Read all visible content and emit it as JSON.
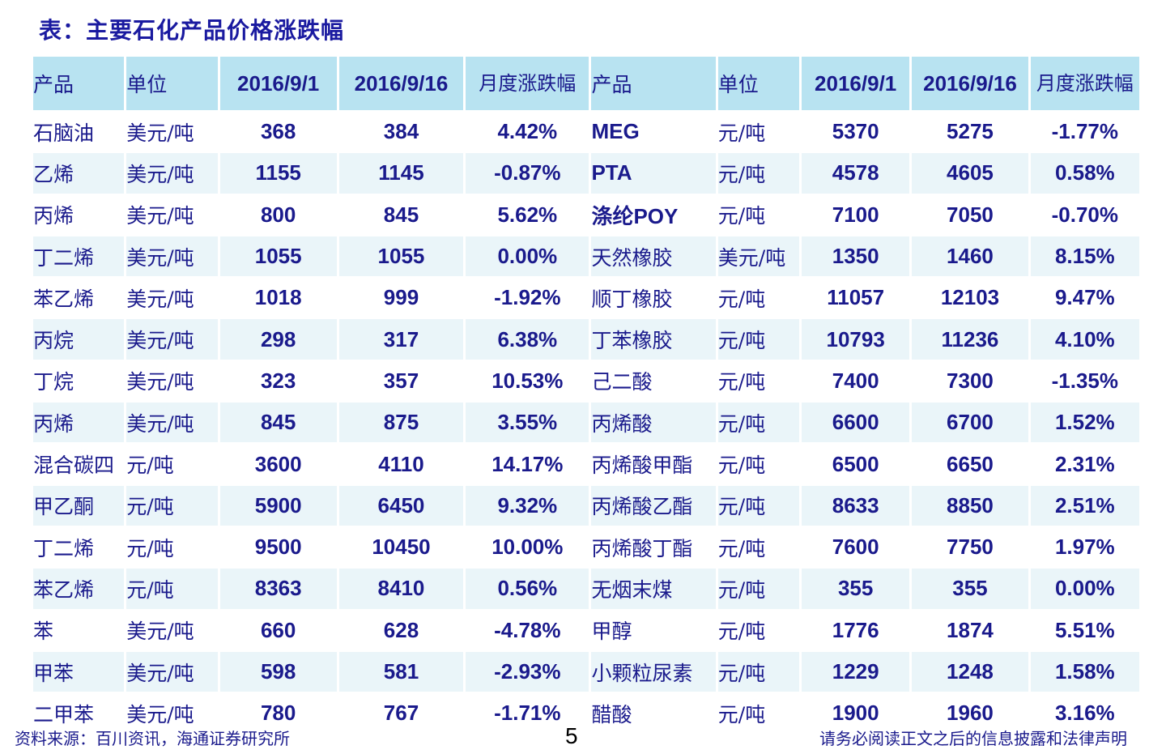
{
  "title": "表：主要石化产品价格涨跌幅",
  "table": {
    "headers": {
      "left": {
        "product": "产品",
        "unit": "单位",
        "date1": "2016/9/1",
        "date2": "2016/9/16",
        "change": "月度涨跌幅"
      },
      "right": {
        "product": "产品",
        "unit": "单位",
        "date1": "2016/9/1",
        "date2": "2016/9/16",
        "change": "月度涨跌幅"
      }
    },
    "rows": [
      {
        "left": {
          "product": "石脑油",
          "unit": "美元/吨",
          "v1": "368",
          "v2": "384",
          "change": "4.42%"
        },
        "right": {
          "product": "MEG",
          "unit": "元/吨",
          "v1": "5370",
          "v2": "5275",
          "change": "-1.77%"
        }
      },
      {
        "left": {
          "product": "乙烯",
          "unit": "美元/吨",
          "v1": "1155",
          "v2": "1145",
          "change": "-0.87%"
        },
        "right": {
          "product": "PTA",
          "unit": "元/吨",
          "v1": "4578",
          "v2": "4605",
          "change": "0.58%"
        }
      },
      {
        "left": {
          "product": "丙烯",
          "unit": "美元/吨",
          "v1": "800",
          "v2": "845",
          "change": "5.62%"
        },
        "right": {
          "product": "涤纶POY",
          "unit": "元/吨",
          "v1": "7100",
          "v2": "7050",
          "change": "-0.70%"
        }
      },
      {
        "left": {
          "product": "丁二烯",
          "unit": "美元/吨",
          "v1": "1055",
          "v2": "1055",
          "change": "0.00%"
        },
        "right": {
          "product": "天然橡胶",
          "unit": "美元/吨",
          "v1": "1350",
          "v2": "1460",
          "change": "8.15%"
        }
      },
      {
        "left": {
          "product": "苯乙烯",
          "unit": "美元/吨",
          "v1": "1018",
          "v2": "999",
          "change": "-1.92%"
        },
        "right": {
          "product": "顺丁橡胶",
          "unit": "元/吨",
          "v1": "11057",
          "v2": "12103",
          "change": "9.47%"
        }
      },
      {
        "left": {
          "product": "丙烷",
          "unit": "美元/吨",
          "v1": "298",
          "v2": "317",
          "change": "6.38%"
        },
        "right": {
          "product": "丁苯橡胶",
          "unit": "元/吨",
          "v1": "10793",
          "v2": "11236",
          "change": "4.10%"
        }
      },
      {
        "left": {
          "product": "丁烷",
          "unit": "美元/吨",
          "v1": "323",
          "v2": "357",
          "change": "10.53%"
        },
        "right": {
          "product": "己二酸",
          "unit": "元/吨",
          "v1": "7400",
          "v2": "7300",
          "change": "-1.35%"
        }
      },
      {
        "left": {
          "product": "丙烯",
          "unit": "美元/吨",
          "v1": "845",
          "v2": "875",
          "change": "3.55%"
        },
        "right": {
          "product": "丙烯酸",
          "unit": "元/吨",
          "v1": "6600",
          "v2": "6700",
          "change": "1.52%"
        }
      },
      {
        "left": {
          "product": "混合碳四",
          "unit": "元/吨",
          "v1": "3600",
          "v2": "4110",
          "change": "14.17%"
        },
        "right": {
          "product": "丙烯酸甲酯",
          "unit": "元/吨",
          "v1": "6500",
          "v2": "6650",
          "change": "2.31%"
        }
      },
      {
        "left": {
          "product": "甲乙酮",
          "unit": "元/吨",
          "v1": "5900",
          "v2": "6450",
          "change": "9.32%"
        },
        "right": {
          "product": "丙烯酸乙酯",
          "unit": "元/吨",
          "v1": "8633",
          "v2": "8850",
          "change": "2.51%"
        }
      },
      {
        "left": {
          "product": "丁二烯",
          "unit": "元/吨",
          "v1": "9500",
          "v2": "10450",
          "change": "10.00%"
        },
        "right": {
          "product": "丙烯酸丁酯",
          "unit": "元/吨",
          "v1": "7600",
          "v2": "7750",
          "change": "1.97%"
        }
      },
      {
        "left": {
          "product": "苯乙烯",
          "unit": "元/吨",
          "v1": "8363",
          "v2": "8410",
          "change": "0.56%"
        },
        "right": {
          "product": "无烟末煤",
          "unit": "元/吨",
          "v1": "355",
          "v2": "355",
          "change": "0.00%"
        }
      },
      {
        "left": {
          "product": "苯",
          "unit": "美元/吨",
          "v1": "660",
          "v2": "628",
          "change": "-4.78%"
        },
        "right": {
          "product": "甲醇",
          "unit": "元/吨",
          "v1": "1776",
          "v2": "1874",
          "change": "5.51%"
        }
      },
      {
        "left": {
          "product": "甲苯",
          "unit": "美元/吨",
          "v1": "598",
          "v2": "581",
          "change": "-2.93%"
        },
        "right": {
          "product": "小颗粒尿素",
          "unit": "元/吨",
          "v1": "1229",
          "v2": "1248",
          "change": "1.58%"
        }
      },
      {
        "left": {
          "product": "二甲苯",
          "unit": "美元/吨",
          "v1": "780",
          "v2": "767",
          "change": "-1.71%"
        },
        "right": {
          "product": "醋酸",
          "unit": "元/吨",
          "v1": "1900",
          "v2": "1960",
          "change": "3.16%"
        }
      }
    ]
  },
  "colors": {
    "positive": "#ff0000",
    "nonpositive": "#1a1a8c",
    "header_bg": "#b8e3f1",
    "stripe_bg": "#eaf5f9"
  },
  "footer": {
    "source": "资料来源：百川资讯，海通证券研究所",
    "page": "5",
    "disclaimer": "请务必阅读正文之后的信息披露和法律声明"
  }
}
